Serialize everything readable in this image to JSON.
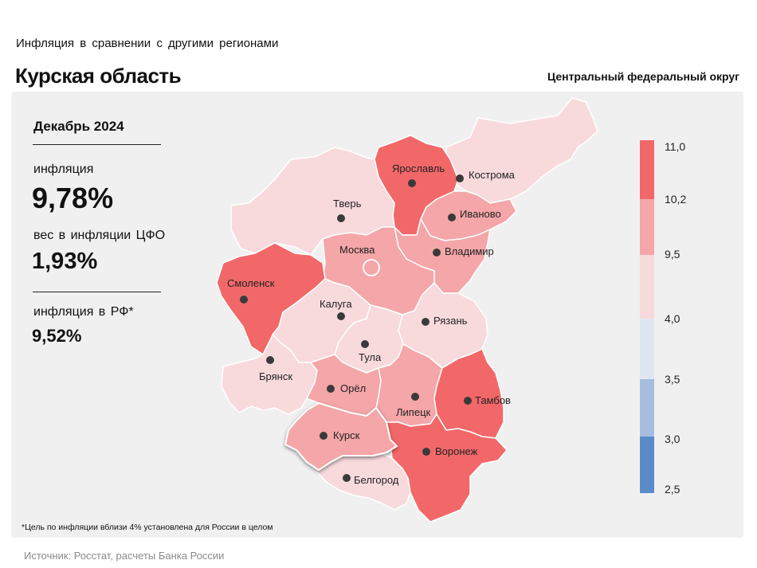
{
  "header": {
    "subtitle": "Инфляция в сравнении с другими регионами",
    "region": "Курская область",
    "district": "Центральный федеральный округ"
  },
  "stats": {
    "date": "Декабрь 2024",
    "inflation_label": "инфляция",
    "inflation_value": "9,78%",
    "weight_label": "вес в инфляции ЦФО",
    "weight_value": "1,93%",
    "rf_label": "инфляция в РФ*",
    "rf_value": "9,52%"
  },
  "footnote": "*Цель по инфляции вблизи 4% установлена для России в целом",
  "source": "Источник: Росстат, расчеты Банка России",
  "legend": {
    "ticks": [
      "11,0",
      "10,2",
      "9,5",
      "4,0",
      "3,5",
      "3,0",
      "2,5"
    ],
    "colors": [
      "#f26869",
      "#f5a6a8",
      "#f8dadd",
      "#dfe6f2",
      "#a6bddf",
      "#5a8cca"
    ]
  },
  "regions": [
    {
      "name": "Ярославль",
      "color": "#f26869"
    },
    {
      "name": "Кострома",
      "color": "#f8dadd"
    },
    {
      "name": "Тверь",
      "color": "#f8dadd"
    },
    {
      "name": "Иваново",
      "color": "#f5a6a8"
    },
    {
      "name": "Москва",
      "color": "#f5a6a8"
    },
    {
      "name": "Владимир",
      "color": "#f5a6a8"
    },
    {
      "name": "Смоленск",
      "color": "#f26869"
    },
    {
      "name": "Калуга",
      "color": "#f8dadd"
    },
    {
      "name": "Рязань",
      "color": "#f8dadd"
    },
    {
      "name": "Тула",
      "color": "#f8dadd"
    },
    {
      "name": "Брянск",
      "color": "#f8dadd"
    },
    {
      "name": "Орёл",
      "color": "#f5a6a8"
    },
    {
      "name": "Липецк",
      "color": "#f5a6a8"
    },
    {
      "name": "Тамбов",
      "color": "#f26869"
    },
    {
      "name": "Курск",
      "color": "#f5a6a8"
    },
    {
      "name": "Воронеж",
      "color": "#f26869"
    },
    {
      "name": "Белгород",
      "color": "#f8dadd"
    }
  ]
}
